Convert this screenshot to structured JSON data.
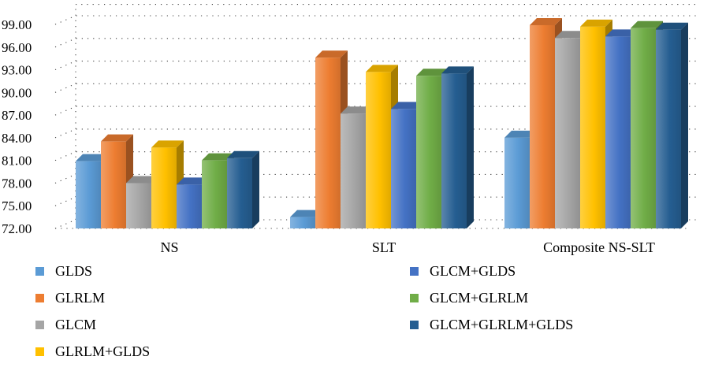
{
  "chart_data": {
    "type": "bar",
    "categories": [
      "NS",
      "SLT",
      "Composite NS-SLT"
    ],
    "series": [
      {
        "name": "GLDS",
        "color": "#5b9bd5",
        "values": [
          80.9,
          73.5,
          84.0
        ]
      },
      {
        "name": "GLRLM",
        "color": "#ed7d31",
        "values": [
          83.5,
          94.6,
          98.9
        ]
      },
      {
        "name": "GLCM",
        "color": "#a5a5a5",
        "values": [
          78.0,
          87.2,
          97.2
        ]
      },
      {
        "name": "GLRLM+GLDS",
        "color": "#ffc000",
        "values": [
          82.7,
          92.7,
          98.7
        ]
      },
      {
        "name": "GLCM+GLDS",
        "color": "#4472c4",
        "values": [
          77.8,
          87.8,
          97.4
        ]
      },
      {
        "name": "GLCM+GLRLM",
        "color": "#70ad47",
        "values": [
          81.0,
          92.2,
          98.5
        ]
      },
      {
        "name": "GLCM+GLRLM+GLDS",
        "color": "#255e91",
        "values": [
          81.3,
          92.5,
          98.3
        ]
      }
    ],
    "yticks": [
      "72.00",
      "75.00",
      "78.00",
      "81.00",
      "84.00",
      "87.00",
      "90.00",
      "93.00",
      "96.00",
      "99.00"
    ],
    "ylim": [
      72,
      99
    ],
    "grid": true,
    "legend_position": "bottom"
  }
}
